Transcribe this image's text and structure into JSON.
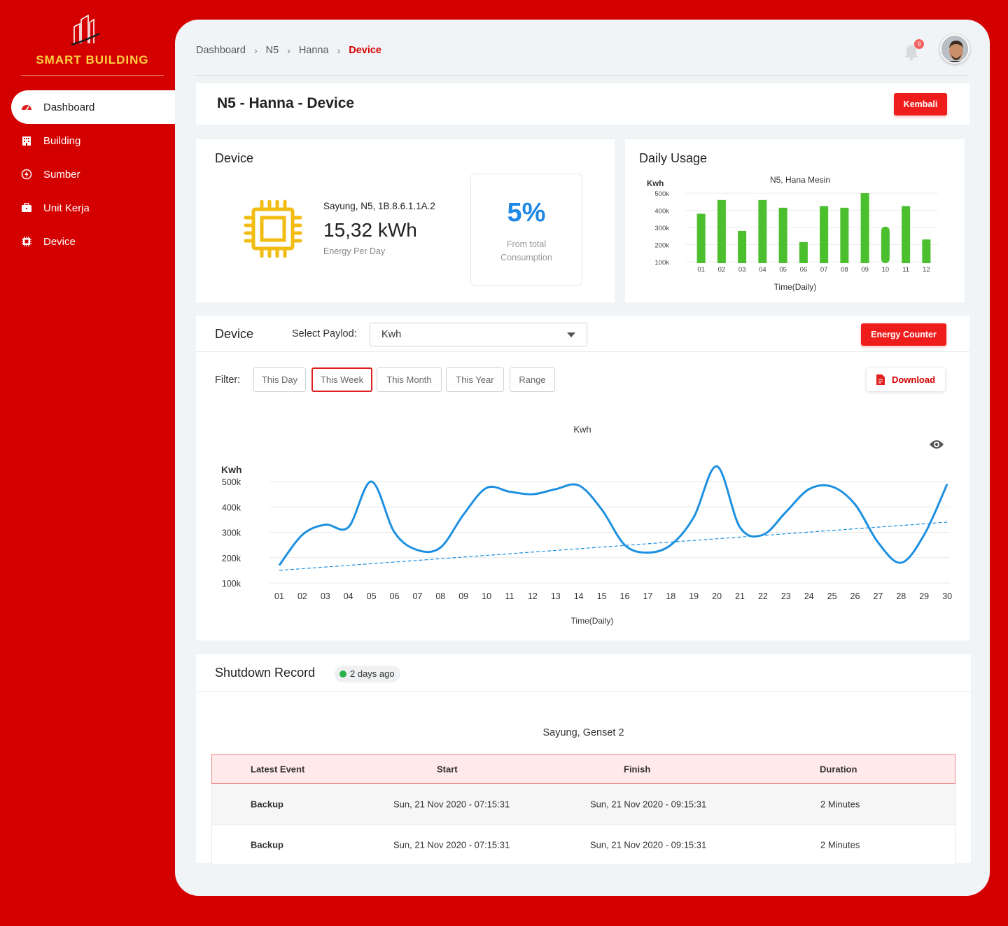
{
  "brand": {
    "title": "SMART BUILDING"
  },
  "sidebar": {
    "items": [
      {
        "label": "Dashboard",
        "icon": "gauge-icon"
      },
      {
        "label": "Building",
        "icon": "building-icon"
      },
      {
        "label": "Sumber",
        "icon": "energy-source-icon"
      },
      {
        "label": "Unit Kerja",
        "icon": "briefcase-icon"
      },
      {
        "label": "Device",
        "icon": "chip-icon"
      }
    ]
  },
  "breadcrumb": [
    "Dashboard",
    "N5",
    "Hanna",
    "Device"
  ],
  "notifications": {
    "count": "9"
  },
  "page": {
    "title": "N5 - Hanna - Device",
    "back_label": "Kembali"
  },
  "device_summary": {
    "heading": "Device",
    "name": "Sayung, N5, 1B.8.6.1.1A.2",
    "energy": "15,32 kWh",
    "energy_label": "Energy Per Day",
    "percent": "5%",
    "percent_label": "From total Consumption"
  },
  "daily_usage": {
    "heading": "Daily Usage"
  },
  "trend": {
    "heading": "Device",
    "select_label": "Select Paylod:",
    "select_value": "Kwh",
    "energy_counter_label": "Energy Counter",
    "filter_label": "Filter:",
    "filters": [
      "This Day",
      "This Week",
      "This Month",
      "This Year",
      "Range"
    ],
    "active_filter": "This Week",
    "download_label": "Download"
  },
  "shutdown": {
    "heading": "Shutdown Record",
    "badge": "2 days ago",
    "subtitle": "Sayung, Genset 2",
    "columns": [
      "Latest Event",
      "Start",
      "Finish",
      "Duration"
    ],
    "rows": [
      {
        "event": "Backup",
        "start": "Sun, 21 Nov 2020 - 07:15:31",
        "finish": "Sun, 21 Nov 2020 - 09:15:31",
        "duration": "2 Minutes"
      },
      {
        "event": "Backup",
        "start": "Sun, 21 Nov 2020 - 07:15:31",
        "finish": "Sun, 21 Nov 2020 - 09:15:31",
        "duration": "2 Minutes"
      }
    ]
  },
  "colors": {
    "brand_red": "#d40000",
    "bar_green": "#4cbf2e",
    "line_blue": "#1e90e0",
    "chip_yellow": "#f2bc12"
  },
  "chart_data": [
    {
      "type": "bar",
      "title": "N5, Hana Mesin",
      "ylabel": "Kwh",
      "xlabel": "Time(Daily)",
      "yticks": [
        "100k",
        "200k",
        "300k",
        "400k",
        "500k"
      ],
      "ylim": [
        100000,
        500000
      ],
      "categories": [
        "01",
        "02",
        "03",
        "04",
        "05",
        "06",
        "07",
        "08",
        "09",
        "10",
        "11",
        "12"
      ],
      "values": [
        380000,
        460000,
        280000,
        460000,
        415000,
        215000,
        425000,
        415000,
        500000,
        305000,
        425000,
        230000
      ],
      "bar_color": "#4cbf2e"
    },
    {
      "type": "line",
      "title": "Kwh",
      "ylabel": "Kwh",
      "xlabel": "Time(Daily)",
      "yticks": [
        "100k",
        "200k",
        "300k",
        "400k",
        "500k"
      ],
      "ylim": [
        100000,
        500000
      ],
      "x": [
        "01",
        "02",
        "03",
        "04",
        "05",
        "06",
        "07",
        "08",
        "09",
        "10",
        "11",
        "12",
        "13",
        "14",
        "15",
        "16",
        "17",
        "18",
        "19",
        "20",
        "21",
        "22",
        "23",
        "24",
        "25",
        "26",
        "27",
        "28",
        "29",
        "30"
      ],
      "series": [
        {
          "values": [
            170000,
            290000,
            330000,
            320000,
            500000,
            300000,
            230000,
            240000,
            370000,
            475000,
            460000,
            450000,
            470000,
            485000,
            390000,
            250000,
            220000,
            250000,
            360000,
            560000,
            320000,
            290000,
            380000,
            470000,
            480000,
            410000,
            260000,
            180000,
            290000,
            490000
          ],
          "color": "#1e90e0"
        }
      ],
      "trendline": {
        "start": 150000,
        "end": 340000,
        "style": "dashed"
      }
    }
  ]
}
